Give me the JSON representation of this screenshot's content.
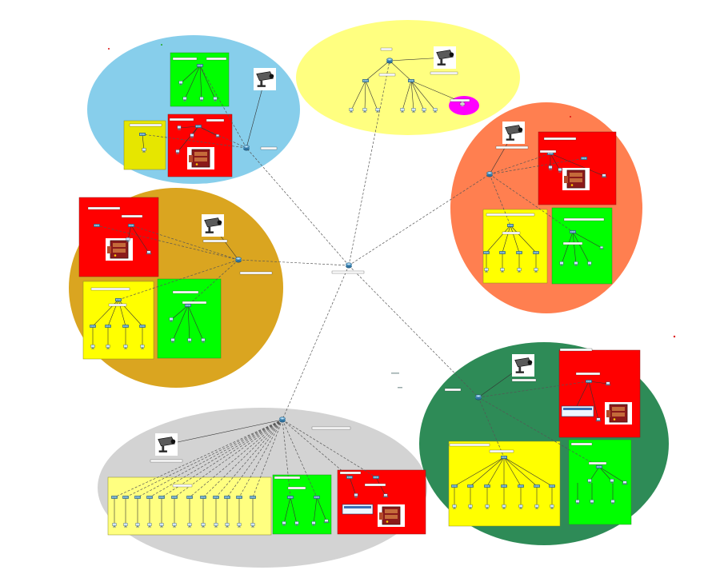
{
  "diagram": {
    "colors": {
      "zone_blue": "#87CEEB",
      "zone_yellow": "#FFFF80",
      "zone_orange": "#FF7F50",
      "zone_gold": "#DAA520",
      "zone_green": "#2E8B57",
      "zone_grey": "#D3D3D3",
      "room_red": "#FF0000",
      "room_green": "#00FF00",
      "room_yellow": "#FFFF00",
      "printer_magenta": "#FF00FF",
      "link_dashed": "#555555",
      "link_solid": "#333333"
    },
    "icons": {
      "router": "router-icon",
      "switch": "switch-icon",
      "pc": "pc-icon",
      "laptop": "laptop-icon",
      "camera": "camera-icon",
      "server": "server-icon",
      "printer": "printer-icon"
    }
  }
}
